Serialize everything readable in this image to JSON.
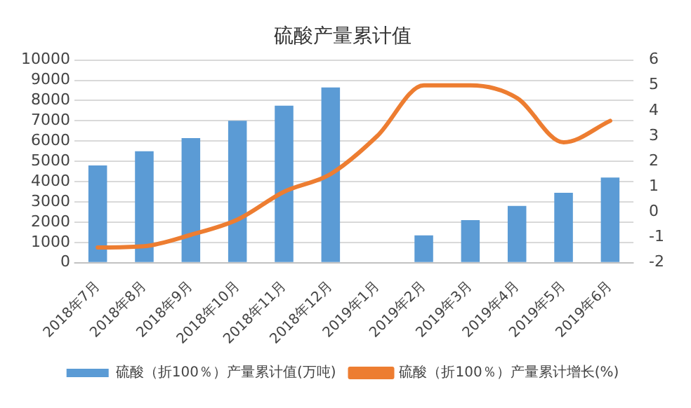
{
  "chart_data": {
    "type": "bar",
    "title": "硫酸产量累计值",
    "categories": [
      "2018年7月",
      "2018年8月",
      "2018年9月",
      "2018年10月",
      "2018年11月",
      "2018年12月",
      "2019年1月",
      "2019年2月",
      "2019年3月",
      "2019年4月",
      "2019年5月",
      "2019年6月"
    ],
    "series": [
      {
        "name": "硫酸（折100％）产量累计值(万吨)",
        "color": "#5b9bd5",
        "values": [
          4800,
          5500,
          6150,
          7000,
          7750,
          8650,
          null,
          1350,
          2100,
          2800,
          3450,
          4200
        ]
      },
      {
        "name": "硫酸（折100％）产量累计增长(%)",
        "type": "line",
        "axis": "y2",
        "color": "#ed7d31",
        "values": [
          -1.4,
          -1.35,
          -0.9,
          -0.3,
          0.8,
          1.5,
          3.0,
          5.0,
          5.0,
          4.5,
          2.75,
          3.6
        ]
      }
    ],
    "ylim": [
      0,
      10000
    ],
    "yticks": [
      0,
      1000,
      2000,
      3000,
      4000,
      5000,
      6000,
      7000,
      8000,
      9000,
      10000
    ],
    "y2lim": [
      -2,
      6
    ],
    "y2ticks": [
      -2,
      -1,
      0,
      1,
      2,
      3,
      4,
      5,
      6
    ],
    "grid": "y",
    "legend": "bottom",
    "marker": "none",
    "line_style": "solid"
  }
}
